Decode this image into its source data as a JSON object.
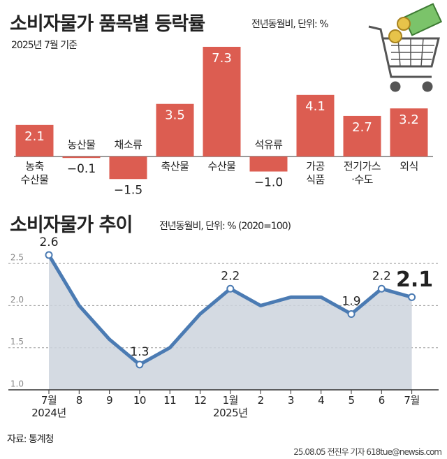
{
  "chart_data": [
    {
      "type": "bar",
      "title": "소비자물가 품목별 등락률",
      "subtitle": "전년동월비, 단위: %",
      "note": "2025년 7월 기준",
      "categories": [
        "농축\n수산물",
        "농산물",
        "채소류",
        "축산물",
        "수산물",
        "석유류",
        "가공\n식품",
        "전기가스\n·수도",
        "외식"
      ],
      "values": [
        2.1,
        -0.1,
        -1.5,
        3.5,
        7.3,
        -1.0,
        4.1,
        2.7,
        3.2
      ],
      "value_labels": [
        "2.1",
        "−0.1",
        "−1.5",
        "3.5",
        "7.3",
        "−1.0",
        "4.1",
        "2.7",
        "3.2"
      ],
      "color": "#dc5d51"
    },
    {
      "type": "line",
      "title": "소비자물가 추이",
      "subtitle": "전년동월비, 단위: % (2020=100)",
      "categories": [
        "7월\n2024년",
        "8",
        "9",
        "10",
        "11",
        "12",
        "1월\n2025년",
        "2",
        "3",
        "4",
        "5",
        "6",
        "7월"
      ],
      "values": [
        2.6,
        2.0,
        1.6,
        1.3,
        1.5,
        1.9,
        2.2,
        2.0,
        2.1,
        2.1,
        1.9,
        2.2,
        2.1
      ],
      "value_labels": [
        "2.6",
        null,
        null,
        "1.3",
        null,
        null,
        "2.2",
        null,
        null,
        null,
        "1.9",
        "2.2",
        "2.1"
      ],
      "color": "#4b7bb3",
      "area_color": "#cdd3dd",
      "ylim": [
        1.0,
        2.7
      ],
      "yticks": [
        {
          "value": 1.0,
          "label": "1.0"
        },
        {
          "value": 1.5,
          "label": "1.5"
        },
        {
          "value": 2.0,
          "label": "2.0"
        },
        {
          "value": 2.5,
          "label": "2.5"
        }
      ],
      "grid": true
    }
  ],
  "source": "자료: 통계청",
  "credit": "25.08.05 전진우 기자 618tue@newsis.com"
}
